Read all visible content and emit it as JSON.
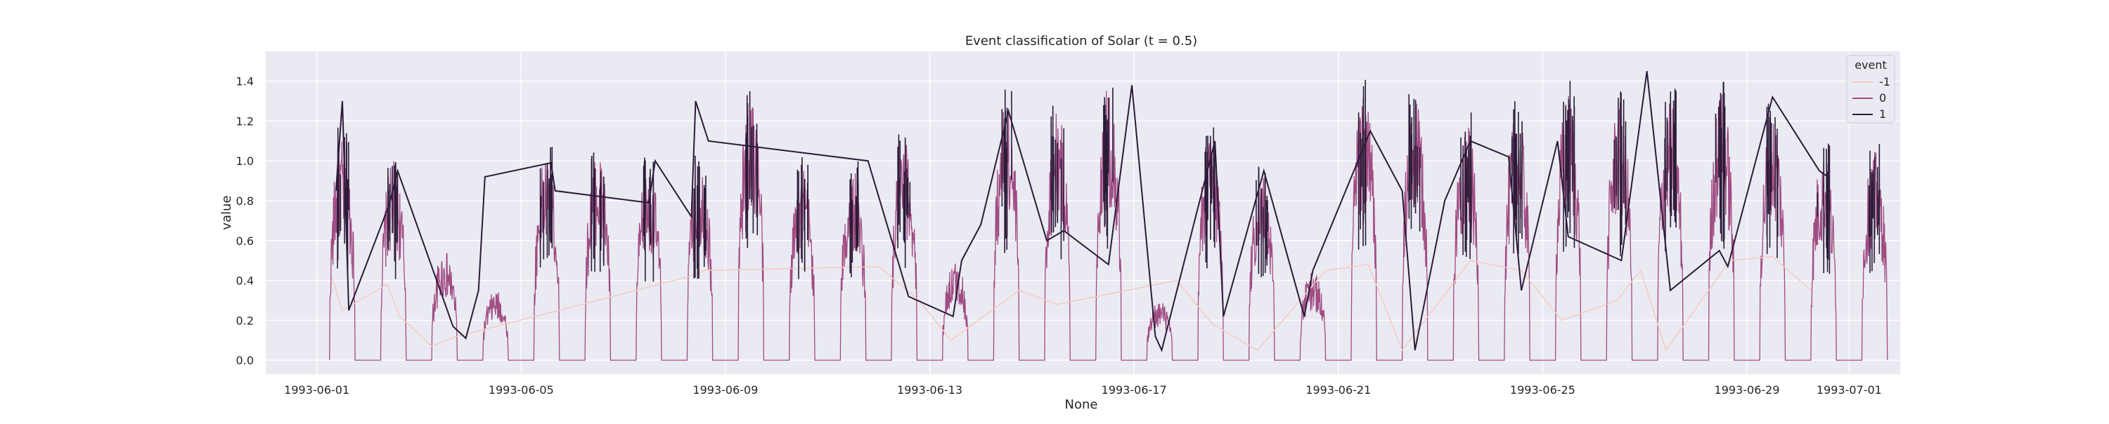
{
  "chart_data": {
    "type": "line",
    "title": "Event classification of Solar (t = 0.5)",
    "xlabel": "None",
    "ylabel": "value",
    "xlim": [
      "1993-05-31T00:00",
      "1993-07-02T00:00"
    ],
    "ylim": [
      -0.07,
      1.55
    ],
    "grid": true,
    "legend": {
      "title": "event",
      "position": "top-right",
      "entries": [
        "-1",
        "0",
        "1"
      ]
    },
    "x_ticks": [
      "1993-06-01",
      "1993-06-05",
      "1993-06-09",
      "1993-06-13",
      "1993-06-17",
      "1993-06-21",
      "1993-06-25",
      "1993-06-29",
      "1993-07-01"
    ],
    "y_ticks": [
      0.0,
      0.2,
      0.4,
      0.6,
      0.8,
      1.0,
      1.2,
      1.4
    ],
    "colors": {
      "-1": "#f3cbc0",
      "0": "#a04c83",
      "1": "#2b1b38",
      "background": "#eaeaf2",
      "grid": "#ffffff"
    },
    "series": [
      {
        "name": "-1",
        "x": [
          "1993-06-01T07:00",
          "1993-06-01T12:00",
          "1993-06-02T09:00",
          "1993-06-02T15:00",
          "1993-06-03T06:00",
          "1993-06-03T18:00",
          "1993-06-06T12:00",
          "1993-06-08T07:00",
          "1993-06-08T14:00",
          "1993-06-12T00:00",
          "1993-06-12T19:00",
          "1993-06-13T10:00",
          "1993-06-14T18:00",
          "1993-06-15T12:00",
          "1993-06-17T20:00",
          "1993-06-18T13:00",
          "1993-06-19T10:00",
          "1993-06-20T18:00",
          "1993-06-21T14:00",
          "1993-06-22T06:00",
          "1993-06-23T14:00",
          "1993-06-24T14:00",
          "1993-06-25T09:00",
          "1993-06-26T11:00",
          "1993-06-26T22:00",
          "1993-06-27T10:00",
          "1993-06-28T16:00",
          "1993-06-29T12:00",
          "1993-06-30T06:00"
        ],
        "y": [
          0.42,
          0.25,
          0.38,
          0.22,
          0.07,
          0.12,
          0.3,
          0.42,
          0.45,
          0.47,
          0.3,
          0.1,
          0.35,
          0.28,
          0.4,
          0.18,
          0.05,
          0.45,
          0.48,
          0.05,
          0.5,
          0.45,
          0.2,
          0.3,
          0.45,
          0.05,
          0.5,
          0.52,
          0.35
        ]
      },
      {
        "name": "0",
        "day_peaks": [
          1.12,
          1.0,
          0.55,
          0.35,
          1.03,
          1.05,
          0.97,
          1.0,
          1.33,
          0.97,
          0.95,
          1.1,
          0.5,
          1.3,
          1.25,
          1.37,
          0.3,
          1.15,
          0.95,
          0.45,
          1.35,
          1.3,
          1.2,
          1.25,
          1.35,
          1.3,
          1.3,
          1.35,
          1.25,
          1.05,
          1.05
        ],
        "night_value": 0.0
      },
      {
        "name": "1",
        "x": [
          "1993-06-01T09:00",
          "1993-06-01T12:00",
          "1993-06-01T15:00",
          "1993-06-02T10:00",
          "1993-06-02T14:00",
          "1993-06-03T16:00",
          "1993-06-03T22:00",
          "1993-06-04T04:00",
          "1993-06-04T07:00",
          "1993-06-05T14:00",
          "1993-06-05T16:00",
          "1993-06-07T12:00",
          "1993-06-07T15:00",
          "1993-06-08T08:00",
          "1993-06-08T10:00",
          "1993-06-08T16:00",
          "1993-06-11T19:00",
          "1993-06-12T14:00",
          "1993-06-13T11:00",
          "1993-06-13T15:00",
          "1993-06-14T00:00",
          "1993-06-14T13:00",
          "1993-06-15T07:00",
          "1993-06-15T15:00",
          "1993-06-16T12:00",
          "1993-06-16T23:00",
          "1993-06-17T10:00",
          "1993-06-17T13:00",
          "1993-06-18T14:00",
          "1993-06-18T18:00",
          "1993-06-19T13:00",
          "1993-06-20T08:00",
          "1993-06-20T12:00",
          "1993-06-21T15:00",
          "1993-06-22T06:00",
          "1993-06-22T12:00",
          "1993-06-23T02:00",
          "1993-06-23T14:00",
          "1993-06-24T08:00",
          "1993-06-24T14:00",
          "1993-06-25T07:00",
          "1993-06-25T12:00",
          "1993-06-26T13:00",
          "1993-06-27T01:00",
          "1993-06-27T12:00",
          "1993-06-28T11:00",
          "1993-06-28T15:00",
          "1993-06-29T12:00",
          "1993-06-30T10:00",
          "1993-06-30T14:00"
        ],
        "y": [
          0.85,
          1.3,
          0.25,
          0.78,
          0.95,
          0.17,
          0.11,
          0.35,
          0.92,
          0.99,
          0.85,
          0.79,
          1.0,
          0.72,
          1.3,
          1.1,
          1.0,
          0.32,
          0.22,
          0.5,
          0.68,
          1.25,
          0.6,
          0.65,
          0.48,
          1.38,
          0.12,
          0.05,
          1.1,
          0.22,
          0.95,
          0.22,
          0.45,
          1.15,
          0.85,
          0.05,
          0.8,
          1.1,
          1.02,
          0.35,
          1.1,
          0.62,
          0.5,
          1.45,
          0.35,
          0.55,
          0.47,
          1.32,
          0.95,
          0.92
        ]
      }
    ]
  }
}
